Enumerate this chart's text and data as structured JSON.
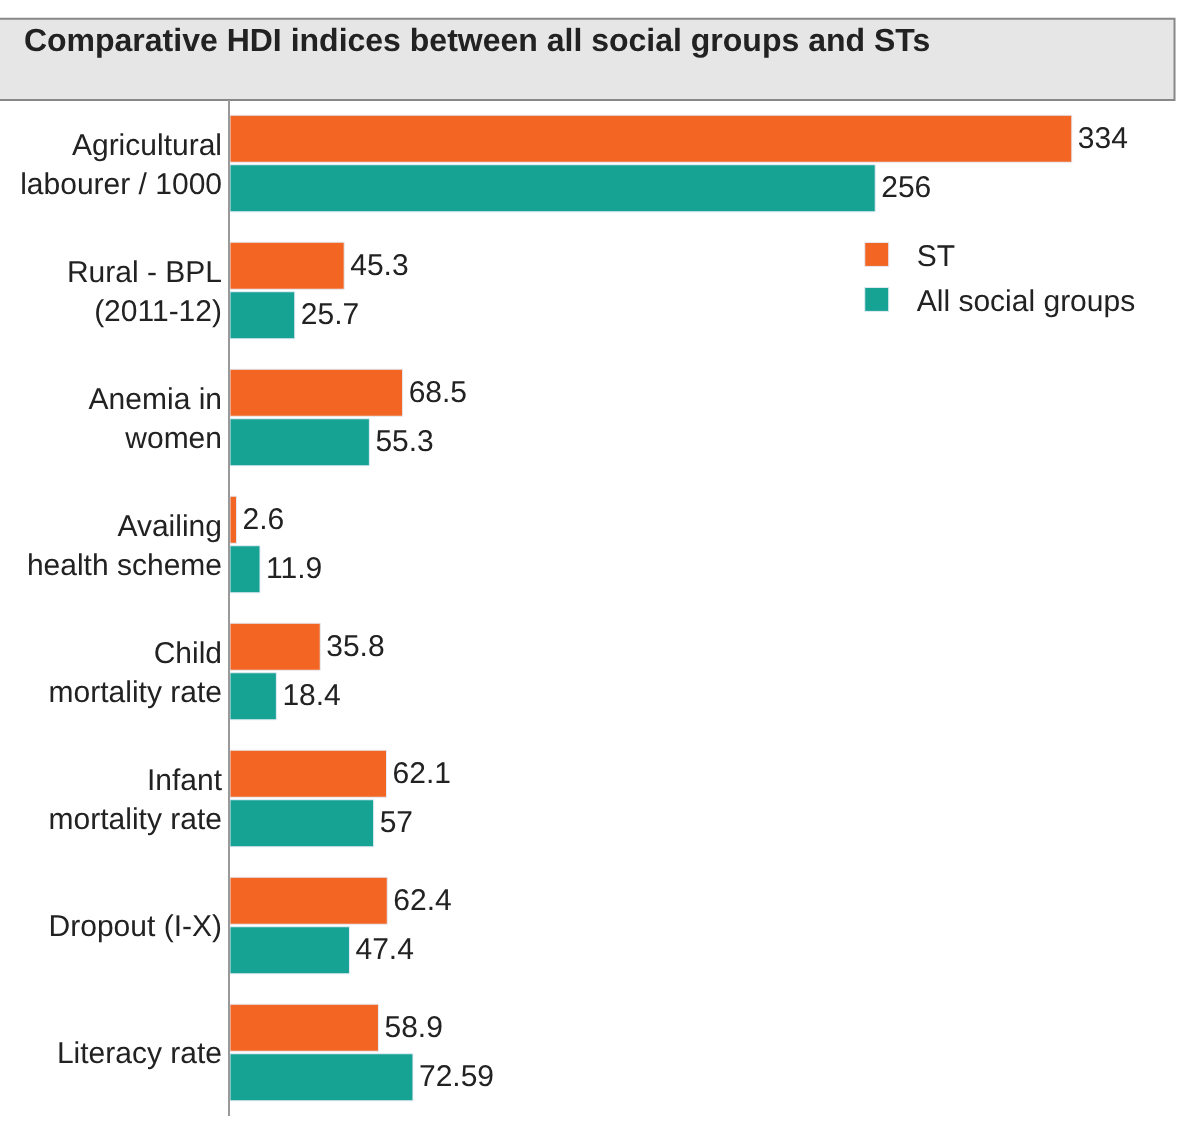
{
  "chart_data": {
    "type": "bar",
    "orientation": "horizontal",
    "title": "Comparative HDI indices between all social groups and STs",
    "categories": [
      "Agricultural\nlabourer / 1000",
      "Rural - BPL\n(2011-12)",
      "Anemia in\nwomen",
      "Availing\nhealth scheme",
      "Child\nmortality rate",
      "Infant\nmortality rate",
      "Dropout (I-X)",
      "Literacy rate"
    ],
    "series": [
      {
        "name": "ST",
        "color": "#f26522",
        "values": [
          334,
          45.3,
          68.5,
          2.6,
          35.8,
          62.1,
          62.4,
          58.9
        ]
      },
      {
        "name": "All social groups",
        "color": "#16a394",
        "values": [
          256,
          25.7,
          55.3,
          11.9,
          18.4,
          57,
          47.4,
          72.59
        ]
      }
    ],
    "data_labels": true,
    "legend": "top right"
  }
}
